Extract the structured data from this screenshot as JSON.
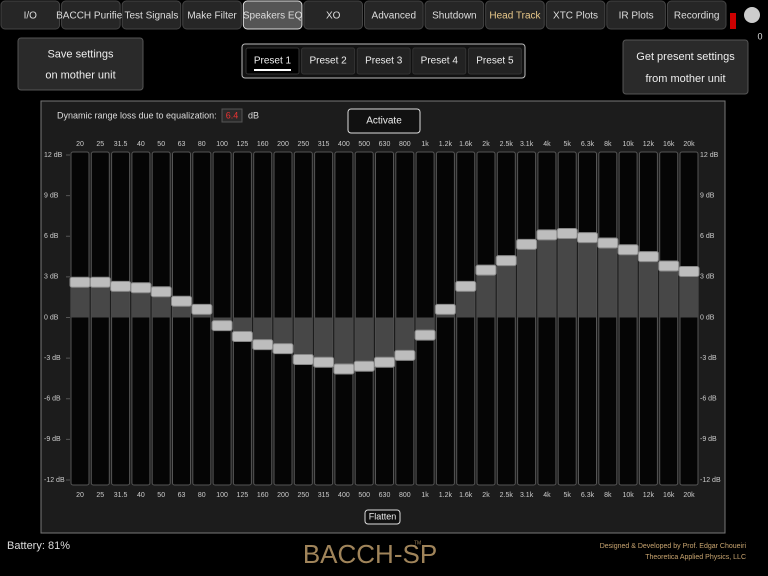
{
  "tabs": [
    {
      "label": "I/O"
    },
    {
      "label": "BACCH Purifier"
    },
    {
      "label": "Test Signals"
    },
    {
      "label": "Make Filter"
    },
    {
      "label": "Speakers EQ",
      "selected": true
    },
    {
      "label": "XO"
    },
    {
      "label": "Advanced"
    },
    {
      "label": "Shutdown"
    },
    {
      "label": "Head Track",
      "highlight": true
    },
    {
      "label": "XTC Plots"
    },
    {
      "label": "IR Plots"
    },
    {
      "label": "Recording"
    }
  ],
  "counter": "0",
  "save_button": [
    "Save settings",
    "on mother unit"
  ],
  "get_button": [
    "Get present settings",
    "from mother unit"
  ],
  "presets": [
    {
      "label": "Preset 1",
      "selected": true
    },
    {
      "label": "Preset 2"
    },
    {
      "label": "Preset 3"
    },
    {
      "label": "Preset 4"
    },
    {
      "label": "Preset 5"
    }
  ],
  "eq": {
    "dynamic_range_label": "Dynamic range loss due to equalization:",
    "dynamic_range_value": 6.4,
    "dynamic_range_unit": "dB",
    "activate": "Activate",
    "flatten": "Flatten",
    "bands": [
      "20",
      "25",
      "31.5",
      "40",
      "50",
      "63",
      "80",
      "100",
      "125",
      "160",
      "200",
      "250",
      "315",
      "400",
      "500",
      "630",
      "800",
      "1k",
      "1.2k",
      "1.6k",
      "2k",
      "2.5k",
      "3.1k",
      "4k",
      "5k",
      "6.3k",
      "8k",
      "10k",
      "12k",
      "16k",
      "20k"
    ],
    "values": [
      2.6,
      2.6,
      2.3,
      2.2,
      1.9,
      1.2,
      0.6,
      -0.6,
      -1.4,
      -2.0,
      -2.3,
      -3.1,
      -3.3,
      -3.8,
      -3.6,
      -3.3,
      -2.8,
      -1.3,
      0.6,
      2.3,
      3.5,
      4.2,
      5.4,
      6.1,
      6.2,
      5.9,
      5.5,
      5.0,
      4.5,
      3.8,
      3.4
    ],
    "ylim": [
      -12,
      12
    ],
    "yticks": [
      {
        "value": 12,
        "label": "12 dB"
      },
      {
        "value": 9,
        "label": "9 dB"
      },
      {
        "value": 6,
        "label": "6 dB"
      },
      {
        "value": 3,
        "label": "3 dB"
      },
      {
        "value": 0,
        "label": "0 dB"
      },
      {
        "value": -3,
        "label": "-3 dB"
      },
      {
        "value": -6,
        "label": "-6 dB"
      },
      {
        "value": -9,
        "label": "-9 dB"
      },
      {
        "value": -12,
        "label": "-12 dB"
      }
    ]
  },
  "footer": {
    "battery": "Battery: 81%",
    "logo": "BACCH-SP",
    "trademark": "TM",
    "credits": [
      "Designed & Developed by Prof. Edgar Choueiri",
      "Theoretica Applied Physics, LLC"
    ]
  }
}
